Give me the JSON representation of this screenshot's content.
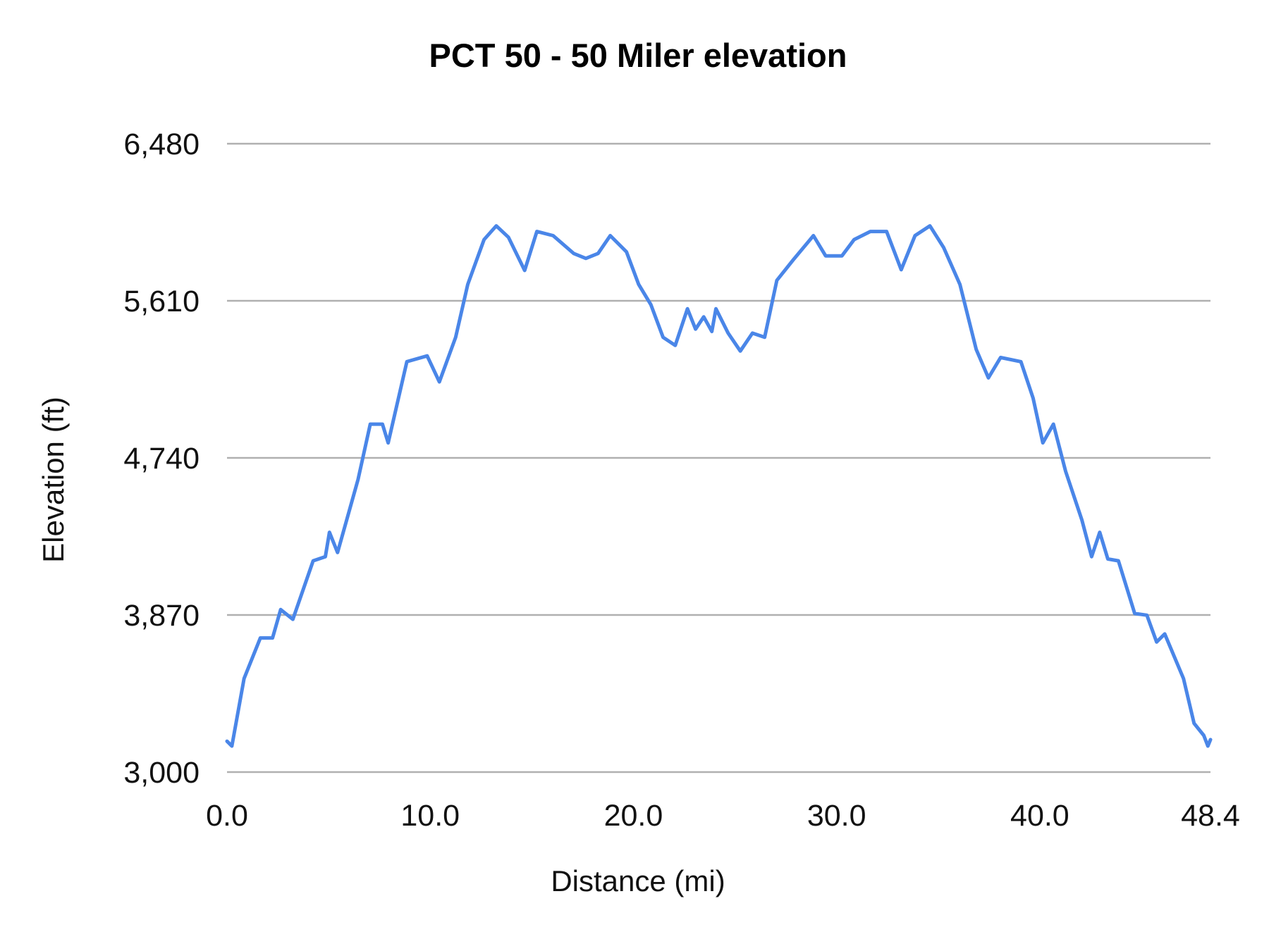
{
  "chart_data": {
    "type": "line",
    "title": "PCT 50 - 50 Miler elevation",
    "xlabel": "Distance (mi)",
    "ylabel": "Elevation (ft)",
    "xlim": [
      0,
      48.4
    ],
    "ylim": [
      3000,
      6480
    ],
    "x_ticks": [
      "0.0",
      "10.0",
      "20.0",
      "30.0",
      "40.0",
      "48.4"
    ],
    "y_ticks": [
      "3,000",
      "3,870",
      "4,740",
      "5,610",
      "6,480"
    ],
    "grid": "horizontal",
    "legend": "none",
    "line_color": "#4a86e8",
    "series": [
      {
        "x": [
          0,
          0.24,
          0.84,
          1.64,
          2.24,
          2.64,
          3.24,
          4.24,
          4.84,
          5.04,
          5.44,
          6.45,
          7.05,
          7.65,
          7.93,
          8.85,
          9.85,
          10.45,
          11.25,
          11.85,
          12.65,
          13.25,
          13.85,
          14.65,
          15.25,
          16.05,
          17.06,
          17.66,
          18.26,
          18.86,
          19.66,
          20.26,
          20.86,
          21.46,
          22.06,
          22.66,
          23.06,
          23.46,
          23.86,
          24.06,
          24.66,
          25.26,
          25.86,
          26.46,
          27.06,
          27.86,
          28.86,
          29.46,
          30.26,
          30.86,
          31.66,
          32.46,
          33.18,
          33.86,
          34.59,
          35.27,
          36.07,
          36.87,
          37.47,
          38.07,
          39.07,
          39.67,
          40.15,
          40.67,
          41.27,
          42.07,
          42.55,
          42.95,
          43.35,
          43.87,
          44.67,
          45.27,
          45.75,
          46.15,
          47.07,
          47.59,
          48.07,
          48.27,
          48.4
        ],
        "y": [
          3171,
          3144,
          3518,
          3743,
          3743,
          3900,
          3846,
          4170,
          4193,
          4328,
          4216,
          4621,
          4927,
          4927,
          4823,
          5273,
          5305,
          5161,
          5408,
          5701,
          5949,
          6025,
          5962,
          5778,
          5994,
          5971,
          5872,
          5845,
          5872,
          5971,
          5881,
          5701,
          5589,
          5408,
          5363,
          5566,
          5453,
          5521,
          5440,
          5566,
          5431,
          5332,
          5431,
          5408,
          5723,
          5836,
          5971,
          5859,
          5859,
          5949,
          5994,
          5994,
          5782,
          5971,
          6025,
          5904,
          5701,
          5341,
          5183,
          5296,
          5273,
          5071,
          4823,
          4927,
          4666,
          4396,
          4193,
          4328,
          4180,
          4170,
          3878,
          3869,
          3720,
          3765,
          3518,
          3270,
          3203,
          3144,
          3180
        ]
      }
    ]
  }
}
